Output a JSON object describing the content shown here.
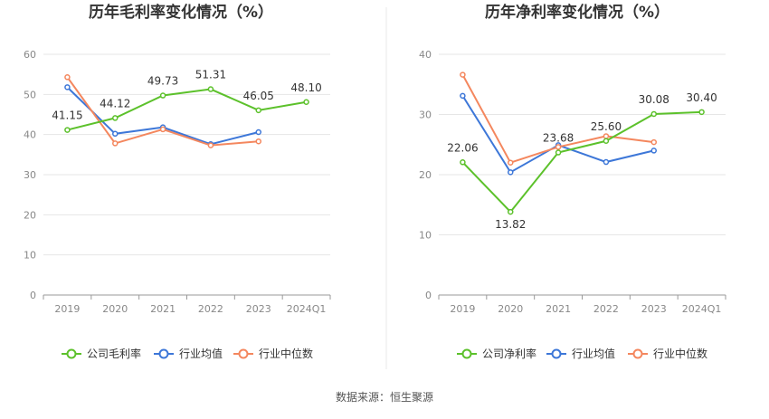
{
  "source": "数据来源：恒生聚源",
  "chart_data": [
    {
      "type": "line",
      "title": "历年毛利率变化情况（%）",
      "categories": [
        "2019",
        "2020",
        "2021",
        "2022",
        "2023",
        "2024Q1"
      ],
      "ylim": [
        0,
        60
      ],
      "yticks": [
        0,
        10,
        20,
        30,
        40,
        50,
        60
      ],
      "grid": true,
      "legend_position": "bottom",
      "series": [
        {
          "name": "公司毛利率",
          "color": "#5cc12b",
          "values": [
            41.15,
            44.12,
            49.73,
            51.31,
            46.05,
            48.1
          ],
          "labels": [
            "41.15",
            "44.12",
            "49.73",
            "51.31",
            "46.05",
            "48.10"
          ]
        },
        {
          "name": "行业均值",
          "color": "#3d77d8",
          "values": [
            51.8,
            40.2,
            41.8,
            37.6,
            40.6,
            null
          ]
        },
        {
          "name": "行业中位数",
          "color": "#f4875e",
          "values": [
            54.3,
            37.8,
            41.3,
            37.3,
            38.3,
            null
          ]
        }
      ]
    },
    {
      "type": "line",
      "title": "历年净利率变化情况（%）",
      "categories": [
        "2019",
        "2020",
        "2021",
        "2022",
        "2023",
        "2024Q1"
      ],
      "ylim": [
        0,
        40
      ],
      "yticks": [
        0,
        10,
        20,
        30,
        40
      ],
      "grid": true,
      "legend_position": "bottom",
      "series": [
        {
          "name": "公司净利率",
          "color": "#5cc12b",
          "values": [
            22.06,
            13.82,
            23.68,
            25.6,
            30.08,
            30.4
          ],
          "labels": [
            "22.06",
            "13.82",
            "23.68",
            "25.60",
            "30.08",
            "30.40"
          ]
        },
        {
          "name": "行业均值",
          "color": "#3d77d8",
          "values": [
            33.1,
            20.4,
            24.9,
            22.1,
            24.0,
            null
          ]
        },
        {
          "name": "行业中位数",
          "color": "#f4875e",
          "values": [
            36.6,
            22.0,
            24.6,
            26.4,
            25.4,
            null
          ]
        }
      ]
    }
  ]
}
